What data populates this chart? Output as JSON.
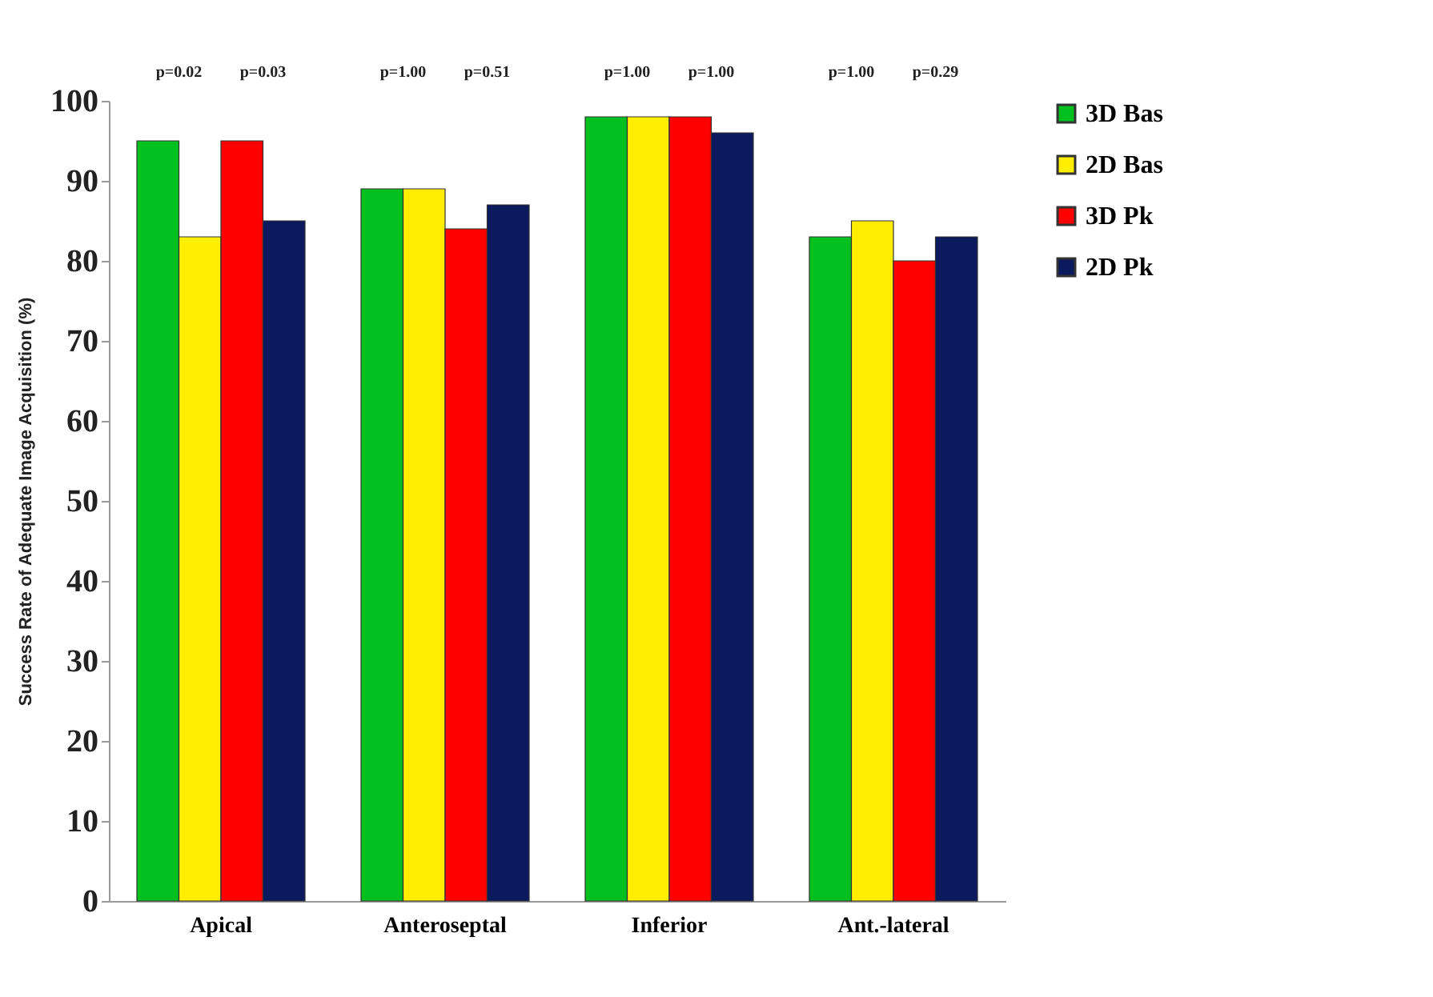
{
  "chart_data": {
    "type": "bar",
    "ylabel": "Success Rate of Adequate Image Acquisition  (%)",
    "categories": [
      "Apical",
      "Anteroseptal",
      "Inferior",
      "Ant.-lateral"
    ],
    "series": [
      {
        "name": "3D Bas",
        "color": "#00c020",
        "values": [
          95,
          89,
          98,
          83
        ]
      },
      {
        "name": "2D Bas",
        "color": "#ffee00",
        "values": [
          83,
          89,
          98,
          85
        ]
      },
      {
        "name": "3D Pk",
        "color": "#ff0000",
        "values": [
          95,
          84,
          98,
          80
        ]
      },
      {
        "name": "2D Pk",
        "color": "#0a1a5c",
        "values": [
          85,
          87,
          96,
          83
        ]
      }
    ],
    "ylim": [
      0,
      100
    ],
    "yticks": [
      0,
      10,
      20,
      30,
      40,
      50,
      60,
      70,
      80,
      90,
      100
    ],
    "annotations": [
      "p=0.02",
      "p=0.03",
      "p=1.00",
      "p=0.51",
      "p=1.00",
      "p=1.00",
      "p=1.00",
      "p=0.29"
    ],
    "legend": "right",
    "grid": false
  }
}
